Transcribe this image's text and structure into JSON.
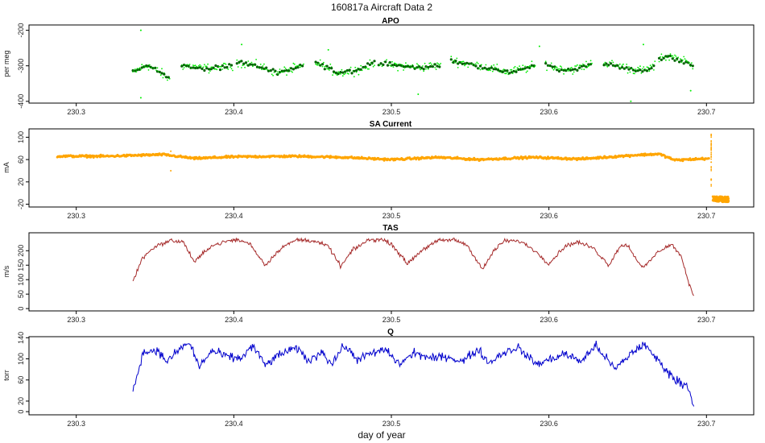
{
  "figure": {
    "title": "160817a   Aircraft Data 2",
    "xlabel": "day of year"
  },
  "chart_data": [
    {
      "type": "scatter",
      "title": "APO",
      "ylabel": "per meg",
      "xlim": [
        230.27,
        230.73
      ],
      "ylim": [
        -405,
        -185
      ],
      "xticks": [
        "230.3",
        "230.4",
        "230.5",
        "230.6",
        "230.7"
      ],
      "yticks": [
        "-200",
        "-300",
        "-400"
      ],
      "ytick_values": [
        -200,
        -300,
        -400
      ],
      "series": [
        {
          "color": "#00ee00",
          "values_style": "light points"
        },
        {
          "color": "#006400",
          "values_style": "dark points"
        }
      ],
      "segments": [
        {
          "x": [
            230.336,
            230.345,
            230.352,
            230.36
          ],
          "y": [
            -318,
            -298,
            -315,
            -340
          ]
        },
        {
          "x": [
            230.367,
            230.38,
            230.392,
            230.4
          ],
          "y": [
            -298,
            -308,
            -305,
            -300
          ]
        },
        {
          "x": [
            230.402,
            230.415,
            230.428,
            230.445
          ],
          "y": [
            -288,
            -300,
            -320,
            -300
          ]
        },
        {
          "x": [
            230.452,
            230.466,
            230.48,
            230.49
          ],
          "y": [
            -290,
            -320,
            -310,
            -290
          ]
        },
        {
          "x": [
            230.492,
            230.505,
            230.518,
            230.532
          ],
          "y": [
            -292,
            -300,
            -305,
            -298
          ]
        },
        {
          "x": [
            230.538,
            230.555,
            230.575,
            230.592
          ],
          "y": [
            -285,
            -300,
            -318,
            -300
          ]
        },
        {
          "x": [
            230.598,
            230.607,
            230.617,
            230.628
          ],
          "y": [
            -295,
            -310,
            -310,
            -292
          ]
        },
        {
          "x": [
            230.635,
            230.648,
            230.66,
            230.668
          ],
          "y": [
            -292,
            -305,
            -315,
            -300
          ]
        },
        {
          "x": [
            230.67,
            230.676,
            230.684,
            230.692
          ],
          "y": [
            -280,
            -272,
            -285,
            -300
          ]
        }
      ]
    },
    {
      "type": "scatter",
      "title": "SA Current",
      "ylabel": "mA",
      "xlim": [
        230.27,
        230.73
      ],
      "ylim": [
        -25,
        115
      ],
      "xticks": [
        "230.3",
        "230.4",
        "230.5",
        "230.6",
        "230.7"
      ],
      "yticks": [
        "100",
        "60",
        "20",
        "-20"
      ],
      "ytick_values": [
        100,
        60,
        20,
        -20
      ],
      "color": "#ffa500",
      "x": [
        230.288,
        230.32,
        230.355,
        230.375,
        230.4,
        230.44,
        230.47,
        230.5,
        230.53,
        230.555,
        230.59,
        230.62,
        230.655,
        230.67,
        230.68,
        230.702
      ],
      "y": [
        66,
        66,
        69,
        62,
        65,
        66,
        64,
        60,
        64,
        60,
        64,
        61,
        68,
        70,
        59,
        62
      ],
      "outliers": [
        {
          "x": 230.36,
          "y": 40
        },
        {
          "x": 230.36,
          "y": 75
        },
        {
          "x": 230.703,
          "y": 105
        },
        {
          "x": 230.703,
          "y": 25
        }
      ],
      "low_cluster": {
        "x": [
          230.704,
          230.714
        ],
        "y": [
          -16,
          -6
        ]
      }
    },
    {
      "type": "line",
      "title": "TAS",
      "ylabel": "m/s",
      "xlim": [
        230.27,
        230.73
      ],
      "ylim": [
        -8,
        262
      ],
      "xticks": [
        "230.3",
        "230.4",
        "230.5",
        "230.6",
        "230.7"
      ],
      "yticks": [
        "200",
        "150",
        "100",
        "50",
        "0"
      ],
      "ytick_values": [
        200,
        150,
        100,
        50,
        0
      ],
      "color": "#a52a2a",
      "x": [
        230.336,
        230.342,
        230.35,
        230.36,
        230.368,
        230.375,
        230.385,
        230.395,
        230.402,
        230.41,
        230.42,
        230.43,
        230.44,
        230.45,
        230.46,
        230.468,
        230.475,
        230.485,
        230.493,
        230.5,
        230.51,
        230.52,
        230.53,
        230.54,
        230.548,
        230.558,
        230.565,
        230.572,
        230.582,
        230.59,
        230.6,
        230.61,
        230.618,
        230.628,
        230.638,
        230.645,
        230.65,
        230.655,
        230.66,
        230.67,
        230.678,
        230.684,
        230.688,
        230.692
      ],
      "y": [
        95,
        175,
        215,
        235,
        230,
        160,
        215,
        232,
        238,
        225,
        150,
        210,
        238,
        235,
        215,
        145,
        200,
        236,
        240,
        225,
        155,
        205,
        235,
        238,
        220,
        135,
        200,
        235,
        232,
        205,
        155,
        215,
        230,
        210,
        150,
        215,
        220,
        175,
        140,
        200,
        222,
        180,
        100,
        45
      ]
    },
    {
      "type": "line",
      "title": "Q",
      "ylabel": "torr",
      "xlim": [
        230.27,
        230.73
      ],
      "ylim": [
        -6,
        142
      ],
      "xticks": [
        "230.3",
        "230.4",
        "230.5",
        "230.6",
        "230.7"
      ],
      "yticks": [
        "140",
        "100",
        "60",
        "20",
        "0"
      ],
      "ytick_values": [
        140,
        100,
        60,
        20,
        0
      ],
      "color": "#0000cd",
      "x": [
        230.336,
        230.342,
        230.35,
        230.358,
        230.366,
        230.372,
        230.378,
        230.386,
        230.395,
        230.404,
        230.412,
        230.42,
        230.43,
        230.44,
        230.448,
        230.456,
        230.462,
        230.47,
        230.478,
        230.488,
        230.496,
        230.505,
        230.515,
        230.525,
        230.535,
        230.545,
        230.555,
        230.562,
        230.57,
        230.58,
        230.592,
        230.602,
        230.61,
        230.62,
        230.63,
        230.642,
        230.652,
        230.66,
        230.67,
        230.68,
        230.688,
        230.692
      ],
      "y": [
        38,
        110,
        118,
        95,
        120,
        130,
        85,
        115,
        105,
        100,
        125,
        88,
        110,
        120,
        95,
        115,
        90,
        125,
        100,
        110,
        118,
        90,
        112,
        100,
        105,
        95,
        118,
        92,
        110,
        122,
        90,
        100,
        110,
        95,
        125,
        80,
        110,
        128,
        95,
        60,
        50,
        10
      ]
    }
  ]
}
